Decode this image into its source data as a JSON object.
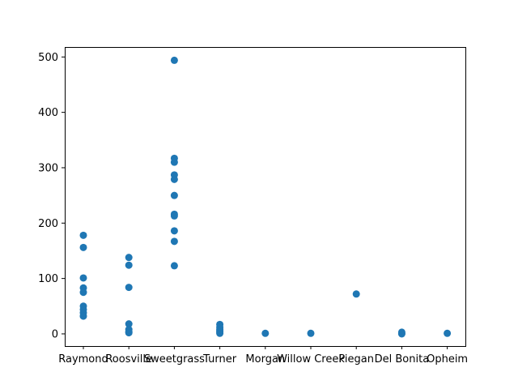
{
  "chart_data": {
    "type": "scatter",
    "title": "",
    "xlabel": "",
    "ylabel": "",
    "categories": [
      "Raymond",
      "Roosville",
      "Sweetgrass",
      "Turner",
      "Morgan",
      "Willow Creek",
      "Piegan",
      "Del Bonita",
      "Opheim"
    ],
    "ylim": [
      -22,
      518
    ],
    "yticks": [
      0,
      100,
      200,
      300,
      400,
      500
    ],
    "ytick_labels": [
      "0",
      "100",
      "200",
      "300",
      "400",
      "500"
    ],
    "grid": false,
    "marker_color": "#1f77b4",
    "points": [
      {
        "x": "Raymond",
        "y": 178
      },
      {
        "x": "Raymond",
        "y": 156
      },
      {
        "x": "Raymond",
        "y": 101
      },
      {
        "x": "Raymond",
        "y": 83
      },
      {
        "x": "Raymond",
        "y": 75
      },
      {
        "x": "Raymond",
        "y": 50
      },
      {
        "x": "Raymond",
        "y": 44
      },
      {
        "x": "Raymond",
        "y": 38
      },
      {
        "x": "Raymond",
        "y": 32
      },
      {
        "x": "Roosville",
        "y": 138
      },
      {
        "x": "Roosville",
        "y": 124
      },
      {
        "x": "Roosville",
        "y": 84
      },
      {
        "x": "Roosville",
        "y": 18
      },
      {
        "x": "Roosville",
        "y": 8
      },
      {
        "x": "Roosville",
        "y": 4
      },
      {
        "x": "Roosville",
        "y": 2
      },
      {
        "x": "Sweetgrass",
        "y": 494
      },
      {
        "x": "Sweetgrass",
        "y": 317
      },
      {
        "x": "Sweetgrass",
        "y": 310
      },
      {
        "x": "Sweetgrass",
        "y": 287
      },
      {
        "x": "Sweetgrass",
        "y": 279
      },
      {
        "x": "Sweetgrass",
        "y": 250
      },
      {
        "x": "Sweetgrass",
        "y": 216
      },
      {
        "x": "Sweetgrass",
        "y": 213
      },
      {
        "x": "Sweetgrass",
        "y": 186
      },
      {
        "x": "Sweetgrass",
        "y": 167
      },
      {
        "x": "Sweetgrass",
        "y": 123
      },
      {
        "x": "Turner",
        "y": 17
      },
      {
        "x": "Turner",
        "y": 12
      },
      {
        "x": "Turner",
        "y": 8
      },
      {
        "x": "Turner",
        "y": 5
      },
      {
        "x": "Turner",
        "y": 3
      },
      {
        "x": "Turner",
        "y": 1
      },
      {
        "x": "Morgan",
        "y": 1
      },
      {
        "x": "Willow Creek",
        "y": 1
      },
      {
        "x": "Piegan",
        "y": 72
      },
      {
        "x": "Del Bonita",
        "y": 3
      },
      {
        "x": "Del Bonita",
        "y": 1
      },
      {
        "x": "Del Bonita",
        "y": 0
      },
      {
        "x": "Opheim",
        "y": 1
      }
    ]
  }
}
